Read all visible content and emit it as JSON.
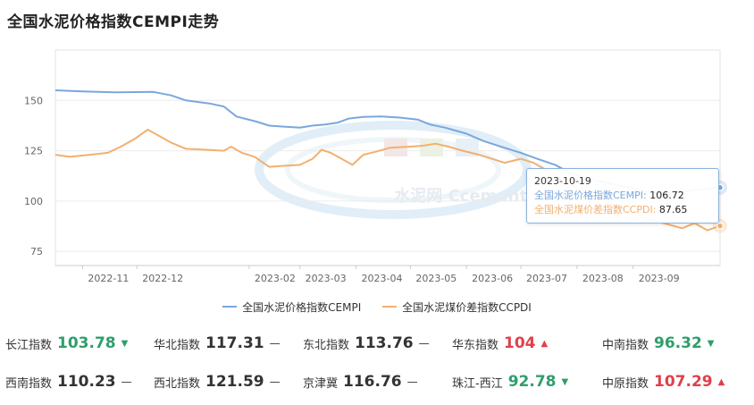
{
  "page_title": "全国水泥价格指数CEMPI走势",
  "watermark": "水泥网 Ccement.com",
  "colors": {
    "series1": "#7aa7dc",
    "series2": "#f2b06e",
    "up": "#e0404a",
    "down": "#2f9e6b",
    "flat": "#333333"
  },
  "chart_data": {
    "type": "line",
    "x_ticks": [
      "2022-11",
      "2022-12",
      "2023-02",
      "2023-03",
      "2023-04",
      "2023-05",
      "2023-06",
      "2023-07",
      "2023-08",
      "2023-09"
    ],
    "y_ticks": [
      "150",
      "125",
      "100",
      "75"
    ],
    "ylim": [
      68,
      175
    ],
    "grid": true,
    "legend_position": "bottom",
    "x_range": [
      "2022-10-17",
      "2023-10-19"
    ],
    "series": [
      {
        "name": "全国水泥价格指数CEMPI",
        "points": [
          [
            "2022-10-17",
            155.0
          ],
          [
            "2022-11-01",
            154.5
          ],
          [
            "2022-11-20",
            154.0
          ],
          [
            "2022-12-10",
            154.2
          ],
          [
            "2022-12-20",
            152.5
          ],
          [
            "2022-12-28",
            150.0
          ],
          [
            "2023-01-10",
            148.5
          ],
          [
            "2023-01-18",
            147.0
          ],
          [
            "2023-01-25",
            142.0
          ],
          [
            "2023-02-05",
            139.5
          ],
          [
            "2023-02-12",
            137.5
          ],
          [
            "2023-02-20",
            137.0
          ],
          [
            "2023-03-01",
            136.5
          ],
          [
            "2023-03-08",
            137.5
          ],
          [
            "2023-03-15",
            138.0
          ],
          [
            "2023-03-22",
            139.0
          ],
          [
            "2023-03-28",
            141.0
          ],
          [
            "2023-04-05",
            141.8
          ],
          [
            "2023-04-15",
            142.0
          ],
          [
            "2023-04-25",
            141.5
          ],
          [
            "2023-05-05",
            140.5
          ],
          [
            "2023-05-12",
            138.0
          ],
          [
            "2023-05-20",
            136.5
          ],
          [
            "2023-06-01",
            133.5
          ],
          [
            "2023-06-10",
            130.0
          ],
          [
            "2023-06-20",
            127.0
          ],
          [
            "2023-07-01",
            124.0
          ],
          [
            "2023-07-10",
            121.0
          ],
          [
            "2023-07-20",
            118.0
          ],
          [
            "2023-07-28",
            114.0
          ],
          [
            "2023-08-10",
            110.5
          ],
          [
            "2023-08-25",
            107.5
          ],
          [
            "2023-09-10",
            104.5
          ],
          [
            "2023-09-25",
            104.0
          ],
          [
            "2023-10-05",
            105.5
          ],
          [
            "2023-10-19",
            106.72
          ]
        ]
      },
      {
        "name": "全国水泥煤价差指数CCPDI",
        "points": [
          [
            "2022-10-17",
            123.0
          ],
          [
            "2022-10-25",
            122.0
          ],
          [
            "2022-11-05",
            123.0
          ],
          [
            "2022-11-15",
            124.0
          ],
          [
            "2022-11-22",
            127.0
          ],
          [
            "2022-11-30",
            131.0
          ],
          [
            "2022-12-07",
            135.5
          ],
          [
            "2022-12-14",
            132.0
          ],
          [
            "2022-12-20",
            129.0
          ],
          [
            "2022-12-28",
            126.0
          ],
          [
            "2023-01-08",
            125.5
          ],
          [
            "2023-01-18",
            125.0
          ],
          [
            "2023-01-22",
            127.0
          ],
          [
            "2023-01-28",
            124.0
          ],
          [
            "2023-02-04",
            122.0
          ],
          [
            "2023-02-12",
            117.0
          ],
          [
            "2023-02-20",
            117.5
          ],
          [
            "2023-03-01",
            118.0
          ],
          [
            "2023-03-08",
            121.0
          ],
          [
            "2023-03-13",
            125.5
          ],
          [
            "2023-03-18",
            124.0
          ],
          [
            "2023-03-24",
            121.0
          ],
          [
            "2023-03-30",
            118.0
          ],
          [
            "2023-04-05",
            123.0
          ],
          [
            "2023-04-12",
            124.5
          ],
          [
            "2023-04-20",
            126.5
          ],
          [
            "2023-04-30",
            127.0
          ],
          [
            "2023-05-08",
            127.5
          ],
          [
            "2023-05-15",
            128.5
          ],
          [
            "2023-05-22",
            127.0
          ],
          [
            "2023-05-30",
            125.0
          ],
          [
            "2023-06-08",
            123.0
          ],
          [
            "2023-06-15",
            121.0
          ],
          [
            "2023-06-22",
            119.0
          ],
          [
            "2023-07-01",
            121.0
          ],
          [
            "2023-07-08",
            119.0
          ],
          [
            "2023-07-16",
            115.0
          ],
          [
            "2023-07-24",
            110.0
          ],
          [
            "2023-08-05",
            104.5
          ],
          [
            "2023-08-18",
            99.0
          ],
          [
            "2023-08-28",
            96.0
          ],
          [
            "2023-09-08",
            91.0
          ],
          [
            "2023-09-20",
            88.5
          ],
          [
            "2023-09-28",
            86.5
          ],
          [
            "2023-10-05",
            89.0
          ],
          [
            "2023-10-12",
            85.5
          ],
          [
            "2023-10-19",
            87.65
          ]
        ]
      }
    ]
  },
  "tooltip": {
    "date": "2023-10-19",
    "s1_label": "全国水泥价格指数CEMPI",
    "s1_value": "106.72",
    "s2_label": "全国水泥煤价差指数CCPDI",
    "s2_value": "87.65"
  },
  "regional_indices": [
    {
      "name": "长江指数",
      "value": "103.78",
      "trend": "down"
    },
    {
      "name": "华北指数",
      "value": "117.31",
      "trend": "flat"
    },
    {
      "name": "东北指数",
      "value": "113.76",
      "trend": "flat"
    },
    {
      "name": "华东指数",
      "value": "104",
      "trend": "up"
    },
    {
      "name": "中南指数",
      "value": "96.32",
      "trend": "down"
    },
    {
      "name": "西南指数",
      "value": "110.23",
      "trend": "flat"
    },
    {
      "name": "西北指数",
      "value": "121.59",
      "trend": "flat"
    },
    {
      "name": "京津冀",
      "value": "116.76",
      "trend": "flat"
    },
    {
      "name": "珠江-西江",
      "value": "92.78",
      "trend": "down"
    },
    {
      "name": "中原指数",
      "value": "107.29",
      "trend": "up"
    }
  ]
}
